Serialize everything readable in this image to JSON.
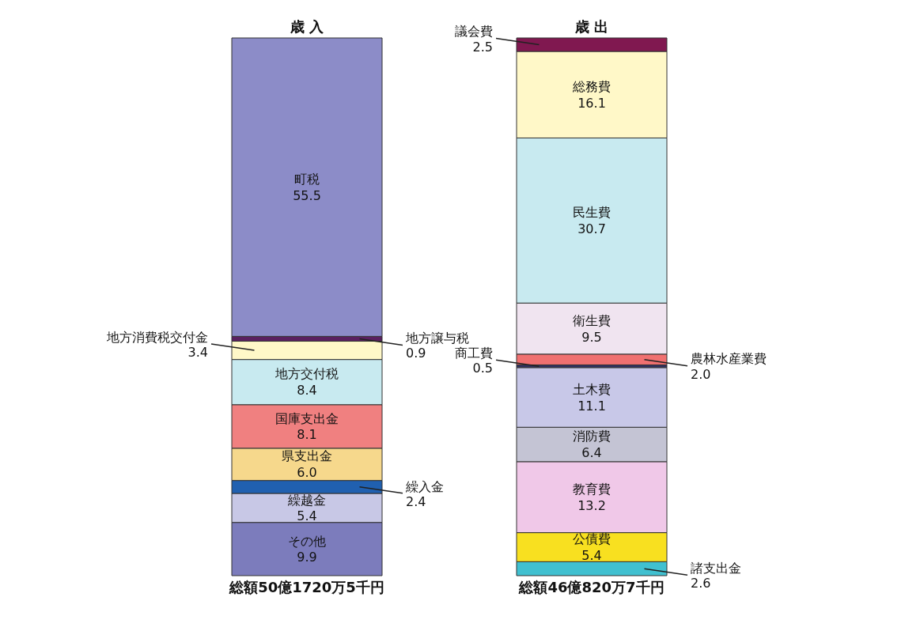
{
  "chart_data": {
    "type": "bar",
    "stacked": true,
    "legend": false,
    "categories": [
      "歳 入",
      "歳 出"
    ],
    "totals": [
      "総額50億1720万5千円",
      "総額46億820万7千円"
    ],
    "series": [
      {
        "name": "その他",
        "color": "#7c7cbc",
        "values": [
          9.9,
          null
        ],
        "value_labels": [
          "9.9",
          null
        ]
      },
      {
        "name": "繰越金",
        "color": "#c8c8e6",
        "values": [
          5.4,
          null
        ],
        "value_labels": [
          "5.4",
          null
        ]
      },
      {
        "name": "繰入金",
        "color": "#2060b0",
        "values": [
          2.4,
          null
        ],
        "value_labels": [
          "2.4",
          null
        ]
      },
      {
        "name": "県支出金",
        "color": "#f6d88c",
        "values": [
          6.0,
          null
        ],
        "value_labels": [
          "6.0",
          null
        ]
      },
      {
        "name": "国庫支出金",
        "color": "#f08080",
        "values": [
          8.1,
          null
        ],
        "value_labels": [
          "8.1",
          null
        ]
      },
      {
        "name": "地方交付税",
        "color": "#c8eaf0",
        "values": [
          8.4,
          null
        ],
        "value_labels": [
          "8.4",
          null
        ]
      },
      {
        "name": "地方消費税交付金",
        "color": "#fff8c8",
        "values": [
          3.4,
          null
        ],
        "value_labels": [
          "3.4",
          null
        ]
      },
      {
        "name": "地方譲与税",
        "color": "#5a2060",
        "values": [
          0.9,
          null
        ],
        "value_labels": [
          "0.9",
          null
        ]
      },
      {
        "name": "町税",
        "color": "#8c8cc8",
        "values": [
          55.5,
          null
        ],
        "value_labels": [
          "55.5",
          null
        ]
      },
      {
        "name": "諸支出金",
        "color": "#40c0d0",
        "values": [
          null,
          2.6
        ],
        "value_labels": [
          null,
          "2.6"
        ]
      },
      {
        "name": "公債費",
        "color": "#f8e020",
        "values": [
          null,
          5.4
        ],
        "value_labels": [
          null,
          "5.4"
        ]
      },
      {
        "name": "教育費",
        "color": "#f0c8e8",
        "values": [
          null,
          13.2
        ],
        "value_labels": [
          null,
          "13.2"
        ]
      },
      {
        "name": "消防費",
        "color": "#c4c4d4",
        "values": [
          null,
          6.4
        ],
        "value_labels": [
          null,
          "6.4"
        ]
      },
      {
        "name": "土木費",
        "color": "#c8c8e8",
        "values": [
          null,
          11.1
        ],
        "value_labels": [
          null,
          "11.1"
        ]
      },
      {
        "name": "商工費",
        "color": "#303060",
        "values": [
          null,
          0.5
        ],
        "value_labels": [
          null,
          "0.5"
        ]
      },
      {
        "name": "農林水産業費",
        "color": "#f07070",
        "values": [
          null,
          2.0
        ],
        "value_labels": [
          null,
          "2.0"
        ]
      },
      {
        "name": "衛生費",
        "color": "#f0e4f0",
        "values": [
          null,
          9.5
        ],
        "value_labels": [
          null,
          "9.5"
        ]
      },
      {
        "name": "民生費",
        "color": "#c8eaf0",
        "values": [
          null,
          30.7
        ],
        "value_labels": [
          null,
          "30.7"
        ]
      },
      {
        "name": "総務費",
        "color": "#fff8c8",
        "values": [
          null,
          16.1
        ],
        "value_labels": [
          null,
          "16.1"
        ]
      },
      {
        "name": "議会費",
        "color": "#801850",
        "values": [
          null,
          2.5
        ],
        "value_labels": [
          null,
          "2.5"
        ]
      }
    ]
  }
}
